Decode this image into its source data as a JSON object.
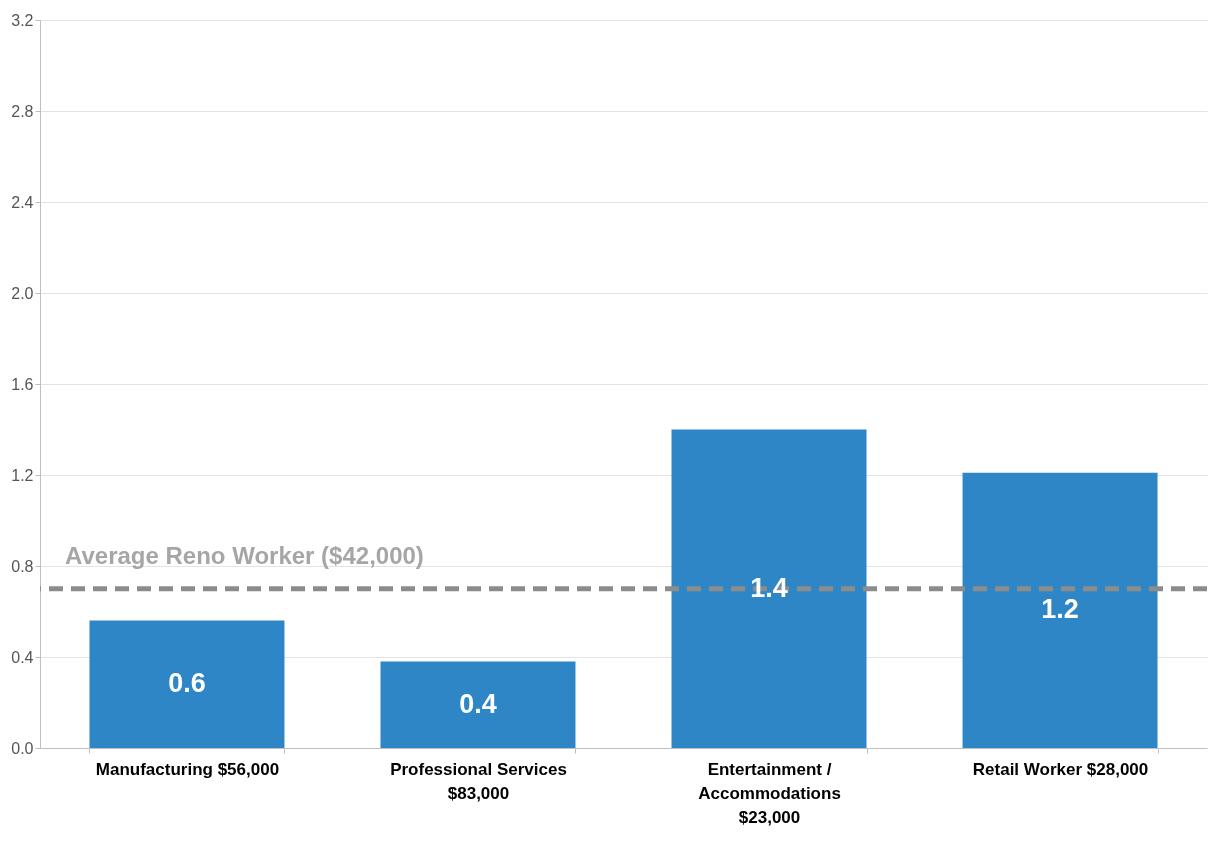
{
  "chart_data": {
    "type": "bar",
    "categories": [
      "Manufacturing $56,000",
      "Professional Services $83,000",
      "Entertainment / Accommodations $23,000",
      "Retail Worker $28,000"
    ],
    "values": [
      0.56,
      0.38,
      1.4,
      1.21
    ],
    "value_labels": [
      "0.6",
      "0.4",
      "1.4",
      "1.2"
    ],
    "color": "#2e86c6",
    "ylim": [
      0,
      3.2
    ],
    "yticks": [
      {
        "value": 0,
        "label": "0.0"
      },
      {
        "value": 0.4,
        "label": "0.4"
      },
      {
        "value": 0.8,
        "label": "0.8"
      },
      {
        "value": 1.2,
        "label": "1.2"
      },
      {
        "value": 1.6,
        "label": "1.6"
      },
      {
        "value": 2,
        "label": "2.0"
      },
      {
        "value": 2.4,
        "label": "2.4"
      },
      {
        "value": 2.8,
        "label": "2.8"
      },
      {
        "value": 3.2,
        "label": "3.2"
      }
    ],
    "grid": "y",
    "ref_lines": [
      {
        "axis": "y",
        "value": 0.7,
        "label": "Average Reno Worker ($42,000)",
        "color": "#8c8c8c",
        "line_style": "dashed"
      }
    ]
  }
}
